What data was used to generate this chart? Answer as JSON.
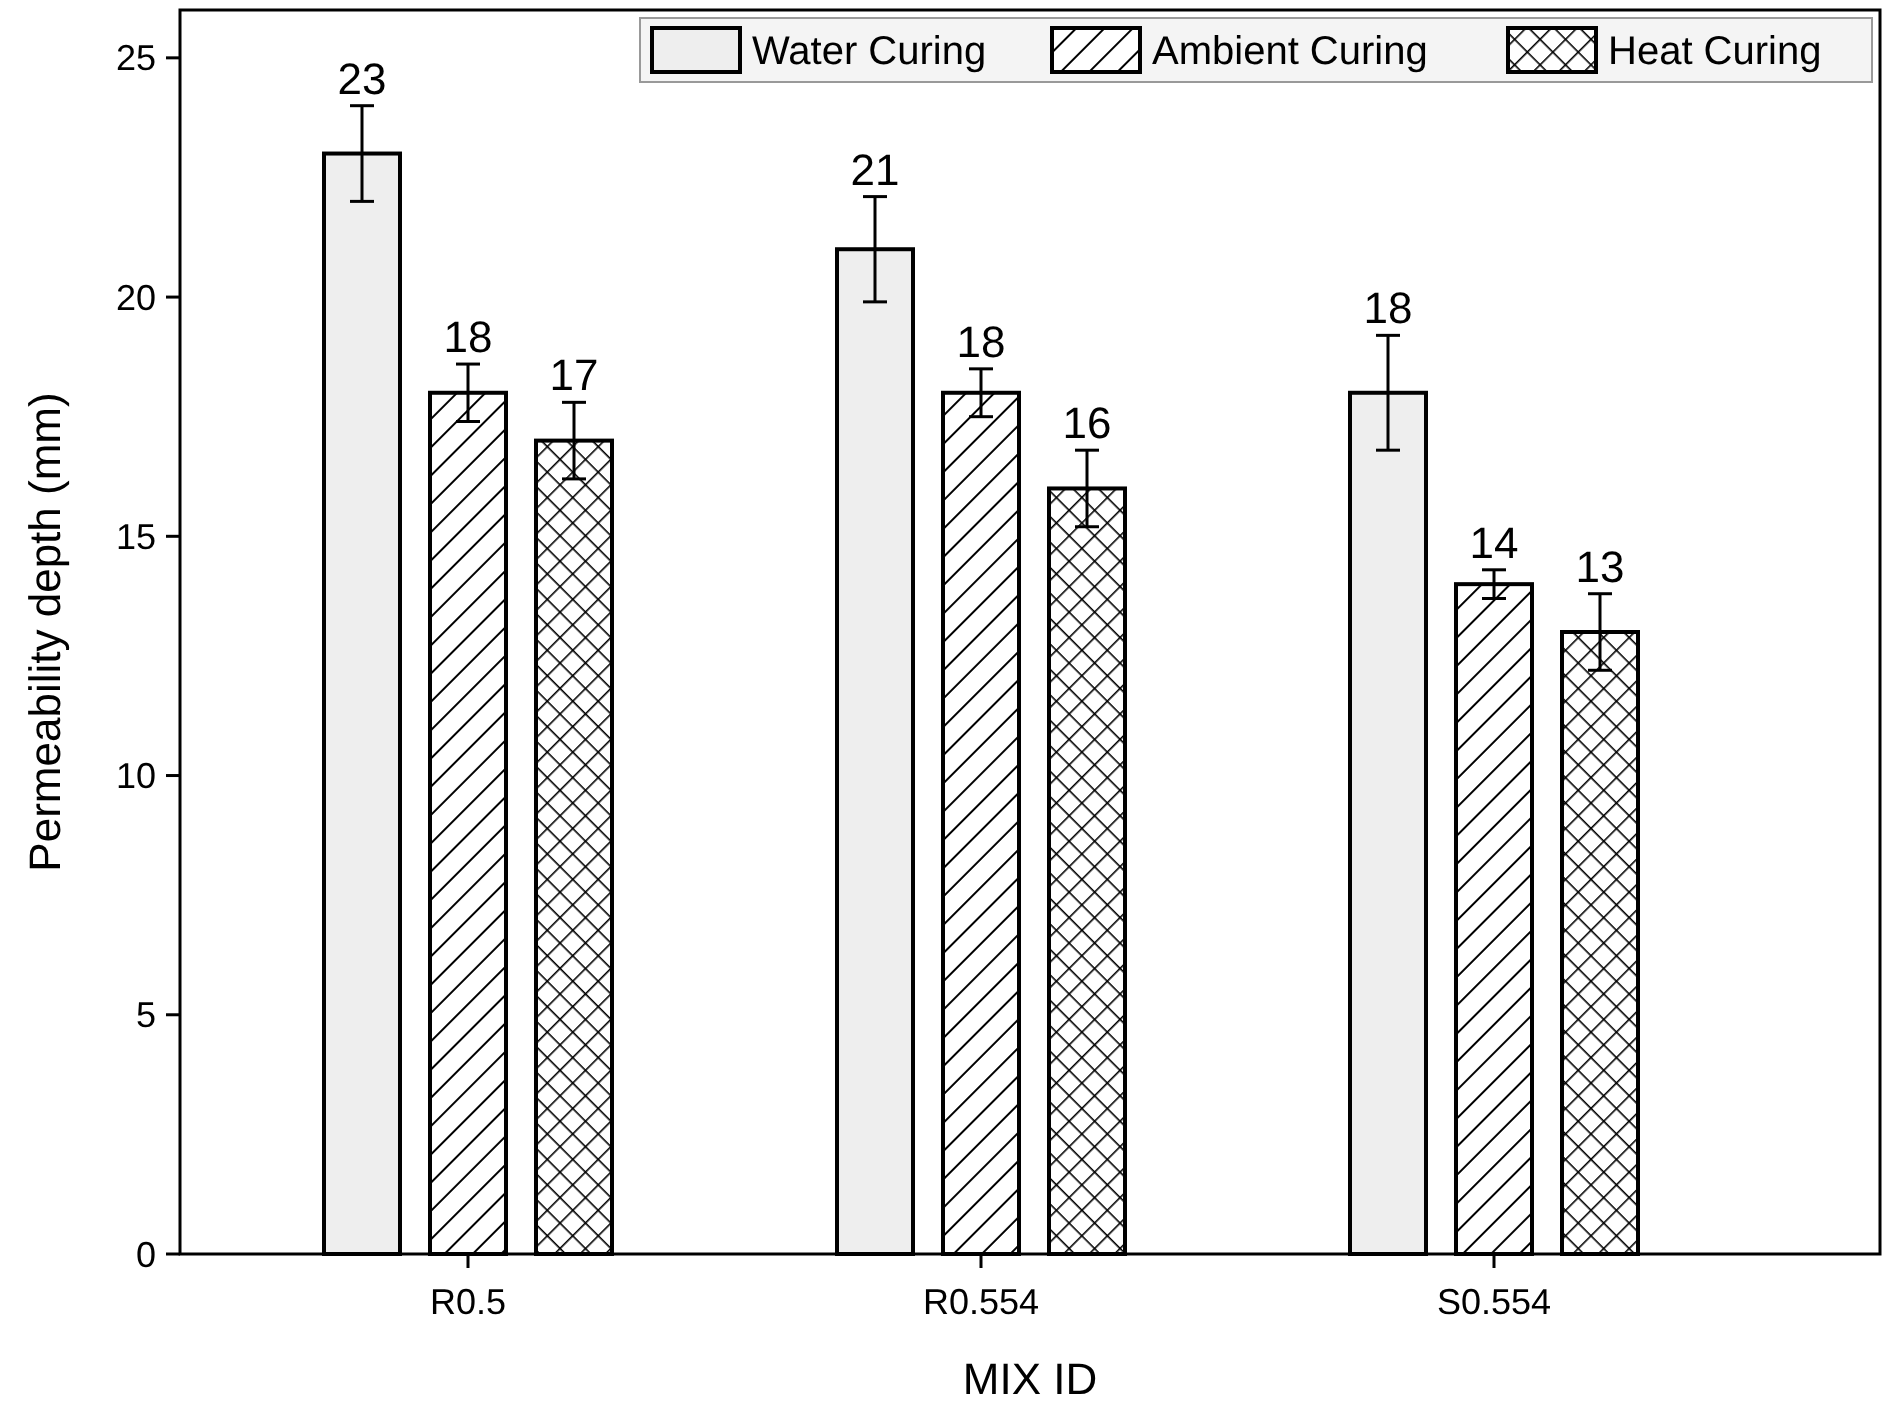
{
  "chart_data": {
    "type": "bar",
    "xlabel": "MIX ID",
    "ylabel": "Permeability depth (mm)",
    "categories": [
      "R0.5",
      "R0.554",
      "S0.554"
    ],
    "series": [
      {
        "name": "Water Curing",
        "color": "#eeeeee",
        "values": [
          23,
          21,
          18
        ],
        "errors": [
          1,
          1.1,
          1.2
        ]
      },
      {
        "name": "Ambient Curing",
        "color": "#000000",
        "values": [
          18,
          18,
          14
        ],
        "errors": [
          0.6,
          0.5,
          0.3
        ]
      },
      {
        "name": "Heat Curing",
        "color": "#000000",
        "values": [
          17,
          16,
          13
        ],
        "errors": [
          0.8,
          0.8,
          0.8
        ]
      }
    ],
    "ylim": [
      0,
      26
    ],
    "yticks": [
      0,
      5,
      10,
      15,
      20,
      25
    ],
    "grid": false,
    "legend": "top right",
    "data_labels": true
  }
}
